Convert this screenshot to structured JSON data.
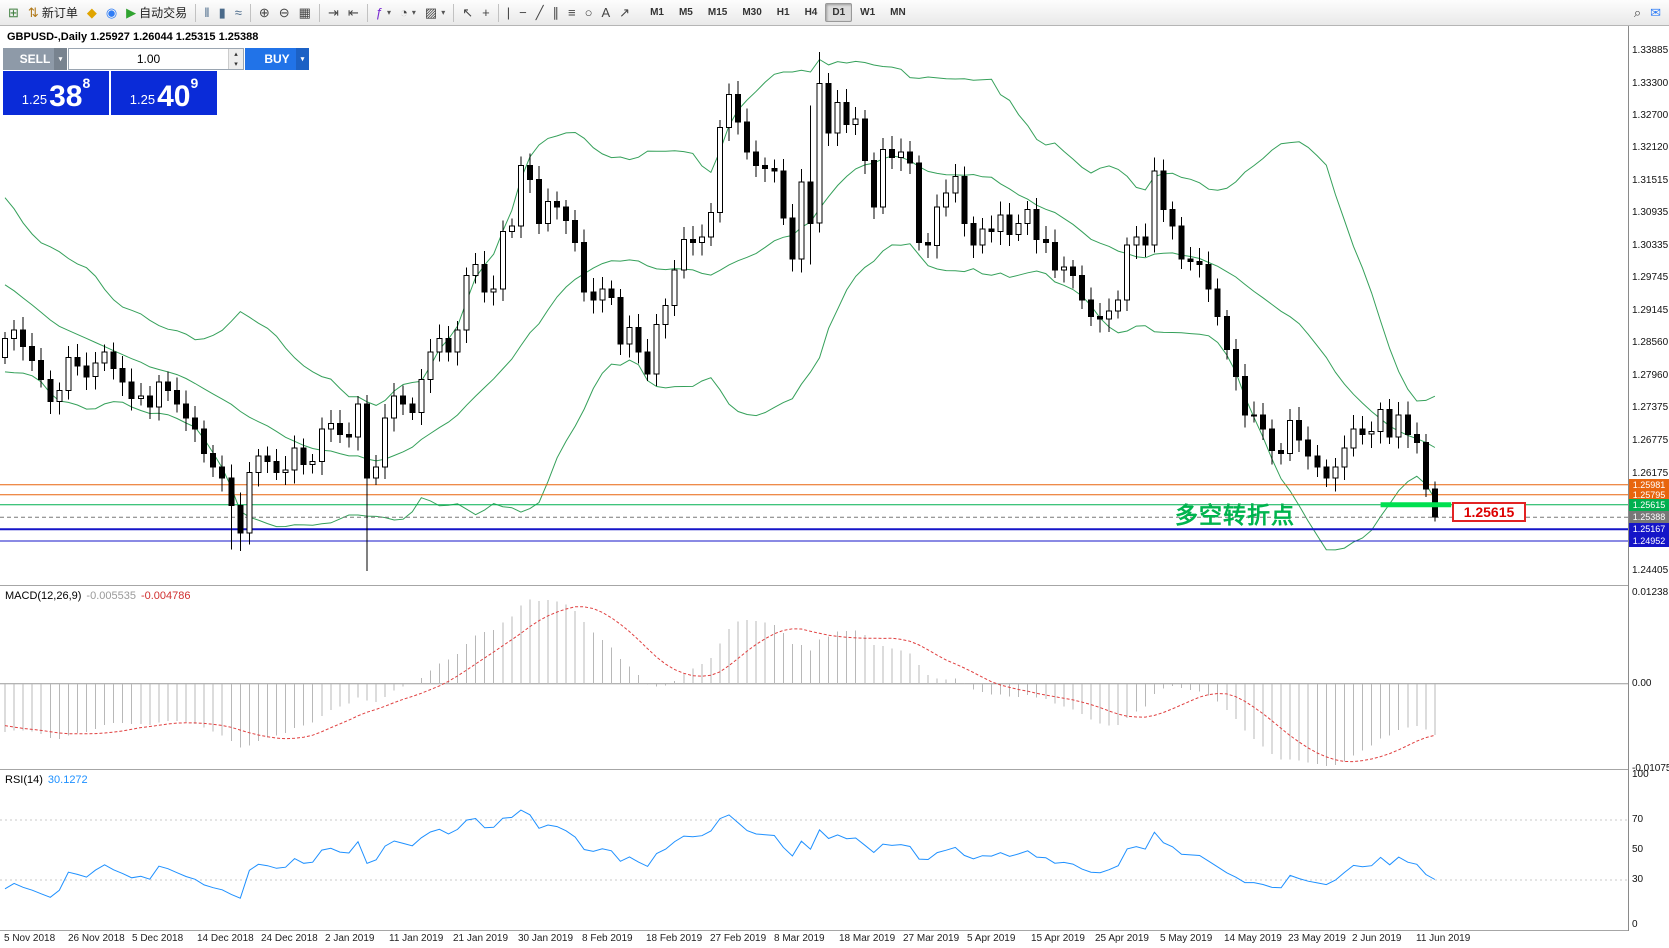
{
  "icons": {
    "dropdown": "▾",
    "stepper_up": "▴",
    "stepper_down": "▾"
  },
  "toolbar": {
    "buttons": [
      {
        "name": "new-chart",
        "glyph": "⊞",
        "color": "#3f7f3f"
      },
      {
        "name": "new-order",
        "glyph": "⇅",
        "label": "新订单",
        "color": "#b07818"
      },
      {
        "name": "metaeditor",
        "glyph": "◆",
        "color": "#e0a400"
      },
      {
        "name": "community",
        "glyph": "◉",
        "color": "#2f7df6"
      },
      {
        "name": "autotrading",
        "glyph": "▶",
        "label": "自动交易",
        "color": "#2fa32f"
      },
      {
        "sep": true
      },
      {
        "name": "bar-chart",
        "glyph": "‖",
        "color": "#4a6a8a"
      },
      {
        "name": "candlestick-chart",
        "glyph": "▮",
        "color": "#4a6a8a"
      },
      {
        "name": "line-chart",
        "glyph": "≈",
        "color": "#4a6a8a"
      },
      {
        "sep": true
      },
      {
        "name": "zoom-in",
        "glyph": "⊕",
        "color": "#444"
      },
      {
        "name": "zoom-out",
        "glyph": "⊖",
        "color": "#444"
      },
      {
        "name": "tile-windows",
        "glyph": "▦",
        "color": "#444"
      },
      {
        "sep": true
      },
      {
        "name": "auto-scroll",
        "glyph": "⇥",
        "color": "#444"
      },
      {
        "name": "chart-shift",
        "glyph": "⇤",
        "color": "#444"
      },
      {
        "sep": true
      },
      {
        "name": "indicators",
        "glyph": "ƒ",
        "color": "#7a2bd2",
        "dropdown": true
      },
      {
        "name": "periods",
        "glyph": "◔",
        "color": "#444",
        "dropdown": true
      },
      {
        "name": "templates",
        "glyph": "▨",
        "color": "#444",
        "dropdown": true
      },
      {
        "sep": true
      },
      {
        "name": "cursor",
        "glyph": "↖",
        "color": "#444"
      },
      {
        "name": "crosshair",
        "glyph": "+",
        "color": "#444"
      },
      {
        "sep": true
      },
      {
        "name": "vertical-line",
        "glyph": "|",
        "color": "#444"
      },
      {
        "name": "horizontal-line",
        "glyph": "−",
        "color": "#444"
      },
      {
        "name": "trendline",
        "glyph": "╱",
        "color": "#444"
      },
      {
        "name": "equidistant-channel",
        "glyph": "∥",
        "color": "#444"
      },
      {
        "name": "fibonacci-retracement",
        "glyph": "≡",
        "color": "#444"
      },
      {
        "name": "shapes",
        "glyph": "○",
        "color": "#444"
      },
      {
        "name": "text-label",
        "glyph": "A",
        "color": "#444"
      },
      {
        "name": "arrow-tools",
        "glyph": "↗",
        "color": "#444"
      }
    ],
    "timeframes": [
      "M1",
      "M5",
      "M15",
      "M30",
      "H1",
      "H4",
      "D1",
      "W1",
      "MN"
    ],
    "active_timeframe": "D1",
    "right_buttons": [
      {
        "name": "search",
        "glyph": "⌕",
        "color": "#444"
      },
      {
        "name": "community-chat",
        "glyph": "✉",
        "color": "#2f7df6"
      }
    ]
  },
  "chart": {
    "symbol_info": "GBPUSD-,Daily 1.25927 1.26044 1.25315 1.25388",
    "trade_panel": {
      "sell_label": "SELL",
      "buy_label": "BUY",
      "volume": "1.00",
      "sell_price": {
        "prefix": "1.25",
        "digits": "38",
        "sup": "8"
      },
      "buy_price": {
        "prefix": "1.25",
        "digits": "40",
        "sup": "9"
      }
    },
    "annotation": "多空转折点",
    "price_label_box": "1.25615"
  },
  "macd": {
    "name": "MACD(12,26,9)",
    "main_value": "-0.005535",
    "signal_value": "-0.004786"
  },
  "rsi": {
    "name": "RSI(14)",
    "value": "30.1272"
  },
  "chart_data": {
    "type": "candlestick",
    "symbol": "GBPUSD-",
    "timeframe": "Daily",
    "last_ohlc": {
      "open": 1.25927,
      "high": 1.26044,
      "low": 1.25315,
      "close": 1.25388
    },
    "first_open": 1.283,
    "closes": [
      1.2865,
      1.288,
      1.285,
      1.2825,
      1.279,
      1.275,
      1.277,
      1.283,
      1.2815,
      1.2795,
      1.282,
      1.284,
      1.281,
      1.2785,
      1.2755,
      1.276,
      1.274,
      1.2785,
      1.277,
      1.2745,
      1.272,
      1.27,
      1.2655,
      1.263,
      1.261,
      1.256,
      1.251,
      1.262,
      1.265,
      1.264,
      1.262,
      1.2625,
      1.2665,
      1.2635,
      1.264,
      1.27,
      1.271,
      1.269,
      1.2685,
      1.2745,
      1.261,
      1.263,
      1.272,
      1.276,
      1.2745,
      1.273,
      1.279,
      1.284,
      1.2865,
      1.284,
      1.288,
      1.298,
      1.3,
      1.295,
      1.2955,
      1.306,
      1.307,
      1.318,
      1.3155,
      1.3075,
      1.3115,
      1.3105,
      1.308,
      1.304,
      1.295,
      1.2935,
      1.2955,
      1.294,
      1.2855,
      1.2885,
      1.284,
      1.28,
      1.289,
      1.2925,
      1.299,
      1.3045,
      1.304,
      1.305,
      1.3095,
      1.325,
      1.331,
      1.326,
      1.3205,
      1.318,
      1.3175,
      1.317,
      1.3085,
      1.301,
      1.315,
      1.3075,
      1.333,
      1.324,
      1.3295,
      1.3255,
      1.3265,
      1.319,
      1.3105,
      1.321,
      1.3195,
      1.3205,
      1.3185,
      1.304,
      1.3035,
      1.3105,
      1.313,
      1.316,
      1.3075,
      1.3035,
      1.3065,
      1.306,
      1.309,
      1.3055,
      1.3075,
      1.31,
      1.3045,
      1.304,
      1.299,
      1.2995,
      1.298,
      1.2935,
      1.2905,
      1.29,
      1.2915,
      1.2935,
      1.3035,
      1.305,
      1.3035,
      1.317,
      1.31,
      1.307,
      1.301,
      1.3005,
      1.3,
      1.2955,
      1.2905,
      1.2845,
      1.2795,
      1.2725,
      1.2725,
      1.27,
      1.266,
      1.2655,
      1.2715,
      1.268,
      1.265,
      1.263,
      1.261,
      1.263,
      1.2665,
      1.27,
      1.269,
      1.2695,
      1.2735,
      1.2685,
      1.2725,
      1.269,
      1.2675,
      1.259,
      1.25388
    ],
    "wick_overrides": {
      "25": {
        "l": 1.248
      },
      "26": {
        "l": 1.2477
      },
      "40": {
        "l": 1.2441
      },
      "89": {
        "h": 1.329,
        "l": 1.3
      },
      "90": {
        "h": 1.3388
      },
      "158": {
        "l": 1.2531,
        "h": 1.2604
      }
    },
    "warmup_closes": [
      1.312,
      1.31,
      1.311,
      1.308,
      1.306,
      1.303,
      1.3,
      1.298,
      1.296,
      1.294,
      1.297,
      1.299,
      1.296,
      1.293,
      1.29,
      1.289,
      1.291,
      1.288,
      1.286,
      1.284
    ],
    "bollinger": {
      "period": 20,
      "deviation": 2
    },
    "macd_params": {
      "fast": 12,
      "slow": 26,
      "signal": 9
    },
    "rsi_period": 14,
    "price_axis": {
      "top": 1.3435,
      "bottom": 1.2415
    },
    "y_axis_labels": [
      {
        "text": "1.33885",
        "price": 1.33885
      },
      {
        "text": "1.33300",
        "price": 1.333
      },
      {
        "text": "1.32700",
        "price": 1.327
      },
      {
        "text": "1.32120",
        "price": 1.3212
      },
      {
        "text": "1.31515",
        "price": 1.31515
      },
      {
        "text": "1.30935",
        "price": 1.30935
      },
      {
        "text": "1.30335",
        "price": 1.30335
      },
      {
        "text": "1.29745",
        "price": 1.29745
      },
      {
        "text": "1.29145",
        "price": 1.29145
      },
      {
        "text": "1.28560",
        "price": 1.2856
      },
      {
        "text": "1.27960",
        "price": 1.2796
      },
      {
        "text": "1.27375",
        "price": 1.27375
      },
      {
        "text": "1.26775",
        "price": 1.26775
      },
      {
        "text": "1.26175",
        "price": 1.26175
      },
      {
        "text": "1.24405",
        "price": 1.24405
      }
    ],
    "levels": [
      {
        "text": "1.25981",
        "price": 1.25981,
        "color": "#E8650E",
        "line": "solid",
        "width": 1
      },
      {
        "text": "1.25795",
        "price": 1.25795,
        "color": "#E8650E",
        "line": "solid",
        "width": 1
      },
      {
        "text": "1.25615",
        "price": 1.25615,
        "color": "#00B050",
        "line": "solid",
        "width": 1
      },
      {
        "text": "1.25388",
        "price": 1.25388,
        "color": "#787878",
        "line": "dash",
        "width": 1
      },
      {
        "text": "1.25167",
        "price": 1.25167,
        "color": "#1515C8",
        "line": "solid",
        "width": 2
      },
      {
        "text": "1.24952",
        "price": 1.24952,
        "color": "#1515C8",
        "line": "solid",
        "width": 1
      }
    ],
    "highlight_segment": {
      "price": 1.25615,
      "from_index": 152,
      "to_index": 159.8,
      "color": "#00E050"
    },
    "macd_range": {
      "top": 0.0124,
      "bottom": -0.0108
    },
    "macd_axis_labels": [
      {
        "text": "0.01238",
        "v": 0.01238
      },
      {
        "text": "0.00",
        "v": 0
      },
      {
        "text": "-0.01075",
        "v": -0.01075
      }
    ],
    "rsi_axis_labels": [
      {
        "text": "100",
        "v": 100
      },
      {
        "text": "70",
        "v": 70
      },
      {
        "text": "50",
        "v": 50
      },
      {
        "text": "30",
        "v": 30
      },
      {
        "text": "0",
        "v": 0
      }
    ],
    "x_labels": [
      "5 Nov 2018",
      "26 Nov 2018",
      "5 Dec 2018",
      "14 Dec 2018",
      "24 Dec 2018",
      "2 Jan 2019",
      "11 Jan 2019",
      "21 Jan 2019",
      "30 Jan 2019",
      "8 Feb 2019",
      "18 Feb 2019",
      "27 Feb 2019",
      "8 Mar 2019",
      "18 Mar 2019",
      "27 Mar 2019",
      "5 Apr 2019",
      "15 Apr 2019",
      "25 Apr 2019",
      "5 May 2019",
      "14 May 2019",
      "23 May 2019",
      "2 Jun 2019",
      "11 Jun 2019"
    ],
    "colors": {
      "bands": "#35A05A",
      "bull": "#FFFFFF",
      "bear": "#000000",
      "wick": "#000000",
      "macd_hist": "#B8B8B8",
      "macd_signal": "#E04040",
      "rsi_line": "#1E90FF",
      "rsi_levels": "#C8C8C8"
    }
  }
}
